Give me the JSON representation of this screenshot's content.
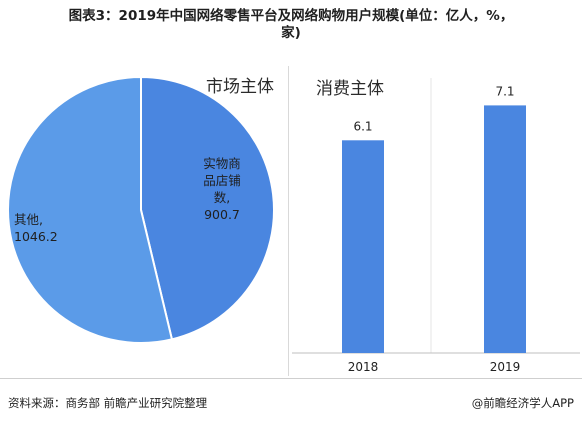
{
  "title_line1": "图表3：2019年中国网络零售平台及网络购物用户规模(单位：亿人，%，",
  "title_line2": "家)",
  "pie_panel_label": "市场主体",
  "bar_panel_label": "消费主体",
  "source": "资料来源：商务部 前瞻产业研究院整理",
  "brand": "@前瞻经济学人APP",
  "colors": {
    "pie_large": "#5b9be8",
    "pie_small": "#4a86e0",
    "bar": "#4a86e0"
  },
  "chart_data": [
    {
      "type": "pie",
      "title": "市场主体",
      "slices": [
        {
          "label_lines": [
            "实物商",
            "品店铺",
            "数,",
            "900.7"
          ],
          "value": 900.7
        },
        {
          "label_lines": [
            "其他,",
            "1046.2"
          ],
          "value": 1046.2
        }
      ]
    },
    {
      "type": "bar",
      "title": "消费主体",
      "categories": [
        "2018",
        "2019"
      ],
      "values": [
        6.1,
        7.1
      ],
      "ylim": [
        0,
        7.6
      ]
    }
  ]
}
